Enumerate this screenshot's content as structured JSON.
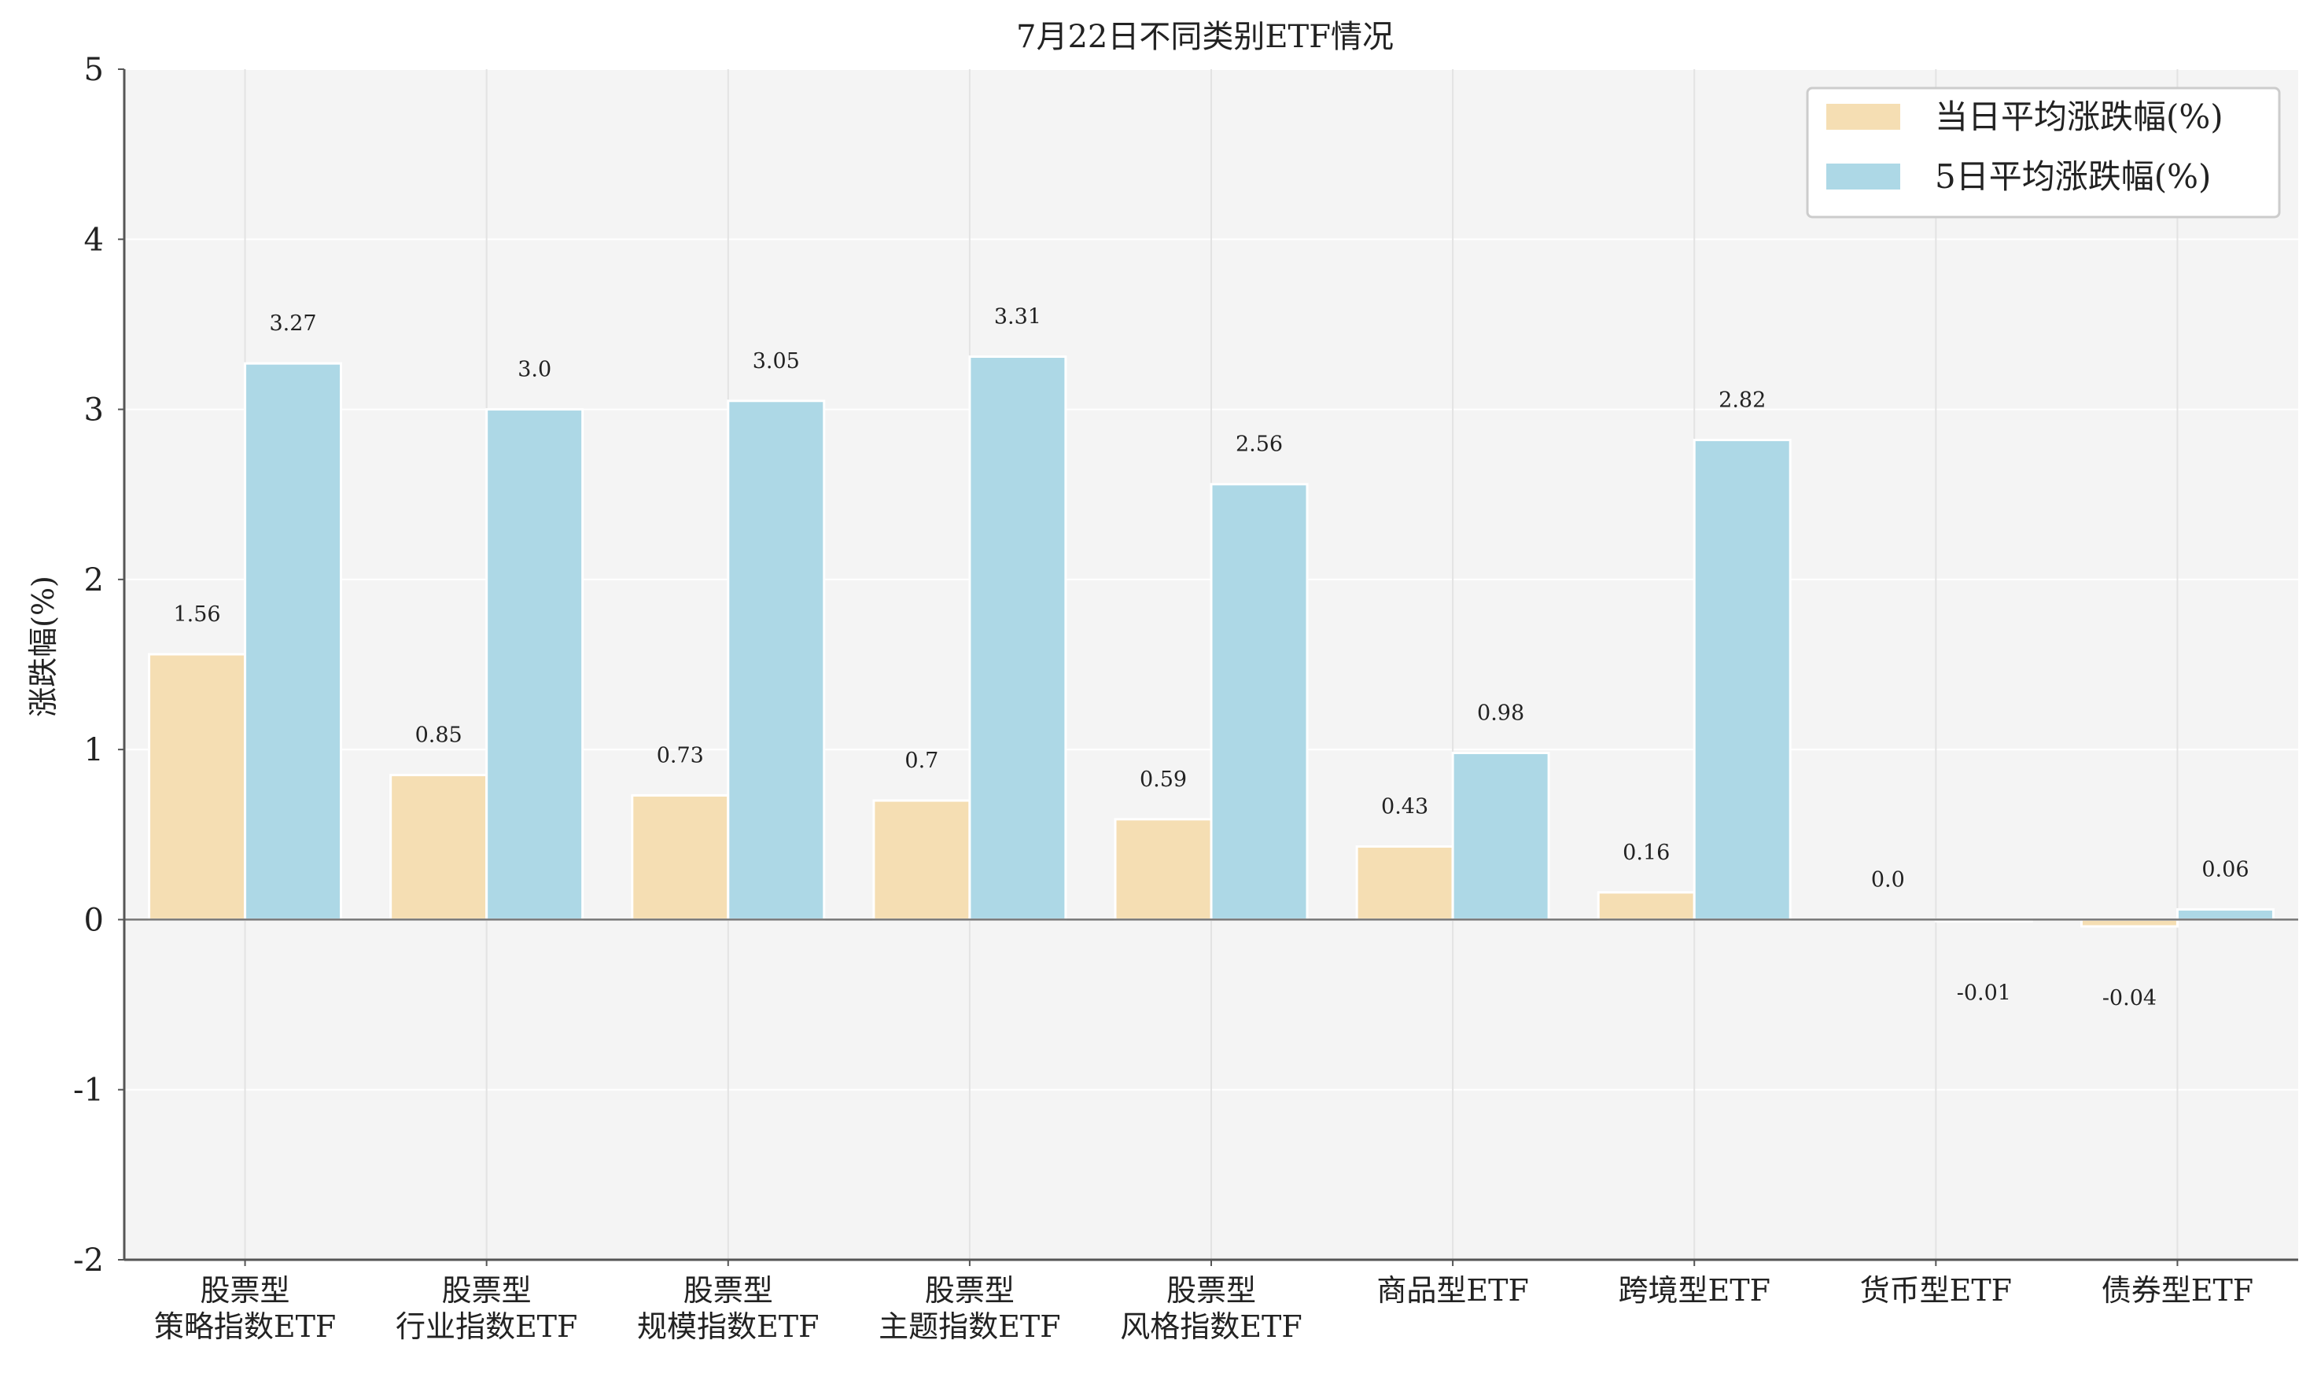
{
  "chart_data": {
    "type": "bar",
    "title": "7月22日不同类别ETF情况",
    "xlabel": "",
    "ylabel": "涨跌幅(%)",
    "ylim": [
      -2,
      5
    ],
    "yticks": [
      -2,
      -1,
      0,
      1,
      2,
      3,
      4,
      5
    ],
    "grid": true,
    "legend_position": "top-right",
    "categories": [
      [
        "股票型",
        "策略指数ETF"
      ],
      [
        "股票型",
        "行业指数ETF"
      ],
      [
        "股票型",
        "规模指数ETF"
      ],
      [
        "股票型",
        "主题指数ETF"
      ],
      [
        "股票型",
        "风格指数ETF"
      ],
      [
        "商品型ETF"
      ],
      [
        "跨境型ETF"
      ],
      [
        "货币型ETF"
      ],
      [
        "债券型ETF"
      ]
    ],
    "series": [
      {
        "name": "当日平均涨跌幅(%)",
        "color": "#f5deb3",
        "values": [
          1.56,
          0.85,
          0.73,
          0.7,
          0.59,
          0.43,
          0.16,
          0.0,
          -0.04
        ],
        "labels": [
          "1.56",
          "0.85",
          "0.73",
          "0.7",
          "0.59",
          "0.43",
          "0.16",
          "0.0",
          "-0.04"
        ]
      },
      {
        "name": "5日平均涨跌幅(%)",
        "color": "#add8e6",
        "values": [
          3.27,
          3.0,
          3.05,
          3.31,
          2.56,
          0.98,
          2.82,
          -0.01,
          0.06
        ],
        "labels": [
          "3.27",
          "3.0",
          "3.05",
          "3.31",
          "2.56",
          "0.98",
          "2.82",
          "-0.01",
          "0.06"
        ]
      }
    ],
    "colors": {
      "plot_background": "#f4f4f4",
      "grid": "#ffffff",
      "axis": "#555555",
      "zero_line": "#777777",
      "legend_border": "#cccccc"
    }
  }
}
